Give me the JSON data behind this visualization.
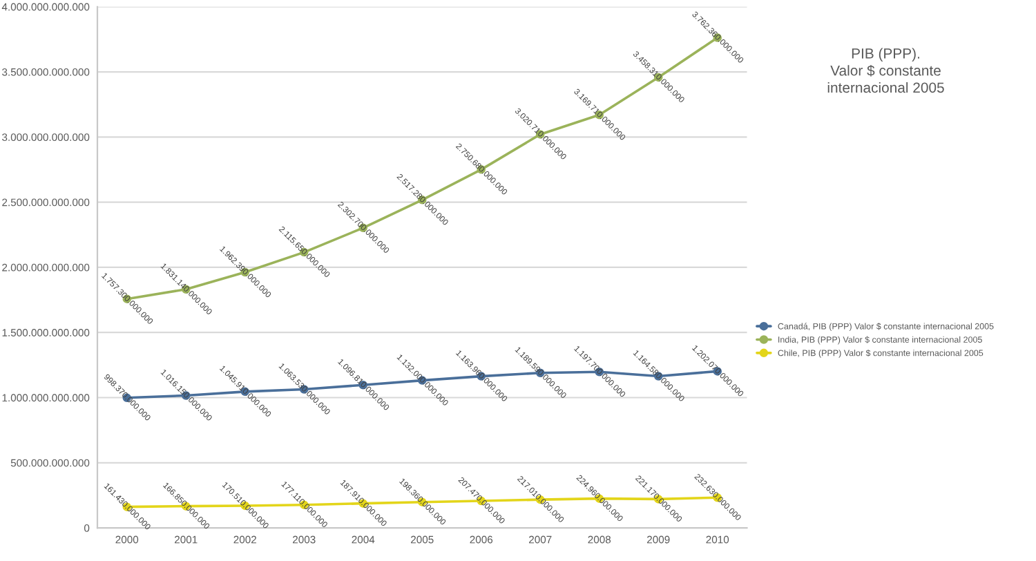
{
  "chart_data": {
    "type": "line",
    "title": "PIB (PPP).\nValor $ constante\ninternacional 2005",
    "categories": [
      "2000",
      "2001",
      "2002",
      "2003",
      "2004",
      "2005",
      "2006",
      "2007",
      "2008",
      "2009",
      "2010"
    ],
    "series": [
      {
        "name": "Canadá, PIB (PPP) Valor $ constante internacional 2005",
        "color": "#4a6f9a",
        "values": [
          998370000000,
          1016150000000,
          1045910000000,
          1063530000000,
          1096810000000,
          1132000000000,
          1163960000000,
          1189590000000,
          1197700000000,
          1164580000000,
          1202070000000
        ],
        "value_labels": [
          "998.370.000.000",
          "1.016.150.000.000",
          "1.045.910.000.000",
          "1.063.530.000.000",
          "1.096.810.000.000",
          "1.132.000.000.000",
          "1.163.960.000.000",
          "1.189.590.000.000",
          "1.197.700.000.000",
          "1.164.580.000.000",
          "1.202.070.000.000"
        ]
      },
      {
        "name": "India, PIB (PPP) Valor $ constante internacional 2005",
        "color": "#9bb35a",
        "values": [
          1757300000000,
          1831140000000,
          1962390000000,
          2115650000000,
          2302700000000,
          2517280000000,
          2750680000000,
          3020710000000,
          3169710000000,
          3458310000000,
          3762360000000
        ],
        "value_labels": [
          "1.757.300.000.000",
          "1.831.140.000.000",
          "1.962.390.000.000",
          "2.115.650.000.000",
          "2.302.700.000.000",
          "2.517.280.000.000",
          "2.750.680.000.000",
          "3.020.710.000.000",
          "3.169.710.000.000",
          "3.458.310.000.000",
          "3.762.360.000.000"
        ]
      },
      {
        "name": "Chile, PIB (PPP) Valor $ constante internacional 2005",
        "color": "#e3d51a",
        "values": [
          161430000000,
          166850000000,
          170510000000,
          177110000000,
          187910000000,
          198360000000,
          207470000000,
          217010000000,
          224960000000,
          221170000000,
          232630000000
        ],
        "value_labels": [
          "161.430.000.000",
          "166.850.000.000",
          "170.510.000.000",
          "177.110.000.000",
          "187.910.000.000",
          "198.360.000.000",
          "207.470.000.000",
          "217.010.000.000",
          "224.960.000.000",
          "221.170.000.000",
          "232.630.000.000"
        ]
      }
    ],
    "ylim": [
      0,
      4000000000000
    ],
    "yticks": [
      0,
      {
        "value": 500000000000,
        "label": "500.000.000.000"
      },
      {
        "value": 1000000000000,
        "label": "1.000.000.000.000"
      },
      {
        "value": 1500000000000,
        "label": "1.500.000.000.000"
      },
      {
        "value": 2000000000000,
        "label": "2.000.000.000.000"
      },
      {
        "value": 2500000000000,
        "label": "2.500.000.000.000"
      },
      {
        "value": 3000000000000,
        "label": "3.000.000.000.000"
      },
      {
        "value": 3500000000000,
        "label": "3.500.000.000.000"
      },
      {
        "value": 4000000000000,
        "label": "4.000.000.000.000"
      }
    ],
    "grid": "y",
    "legend": "right",
    "marker": "circle",
    "line_style": "solid"
  }
}
